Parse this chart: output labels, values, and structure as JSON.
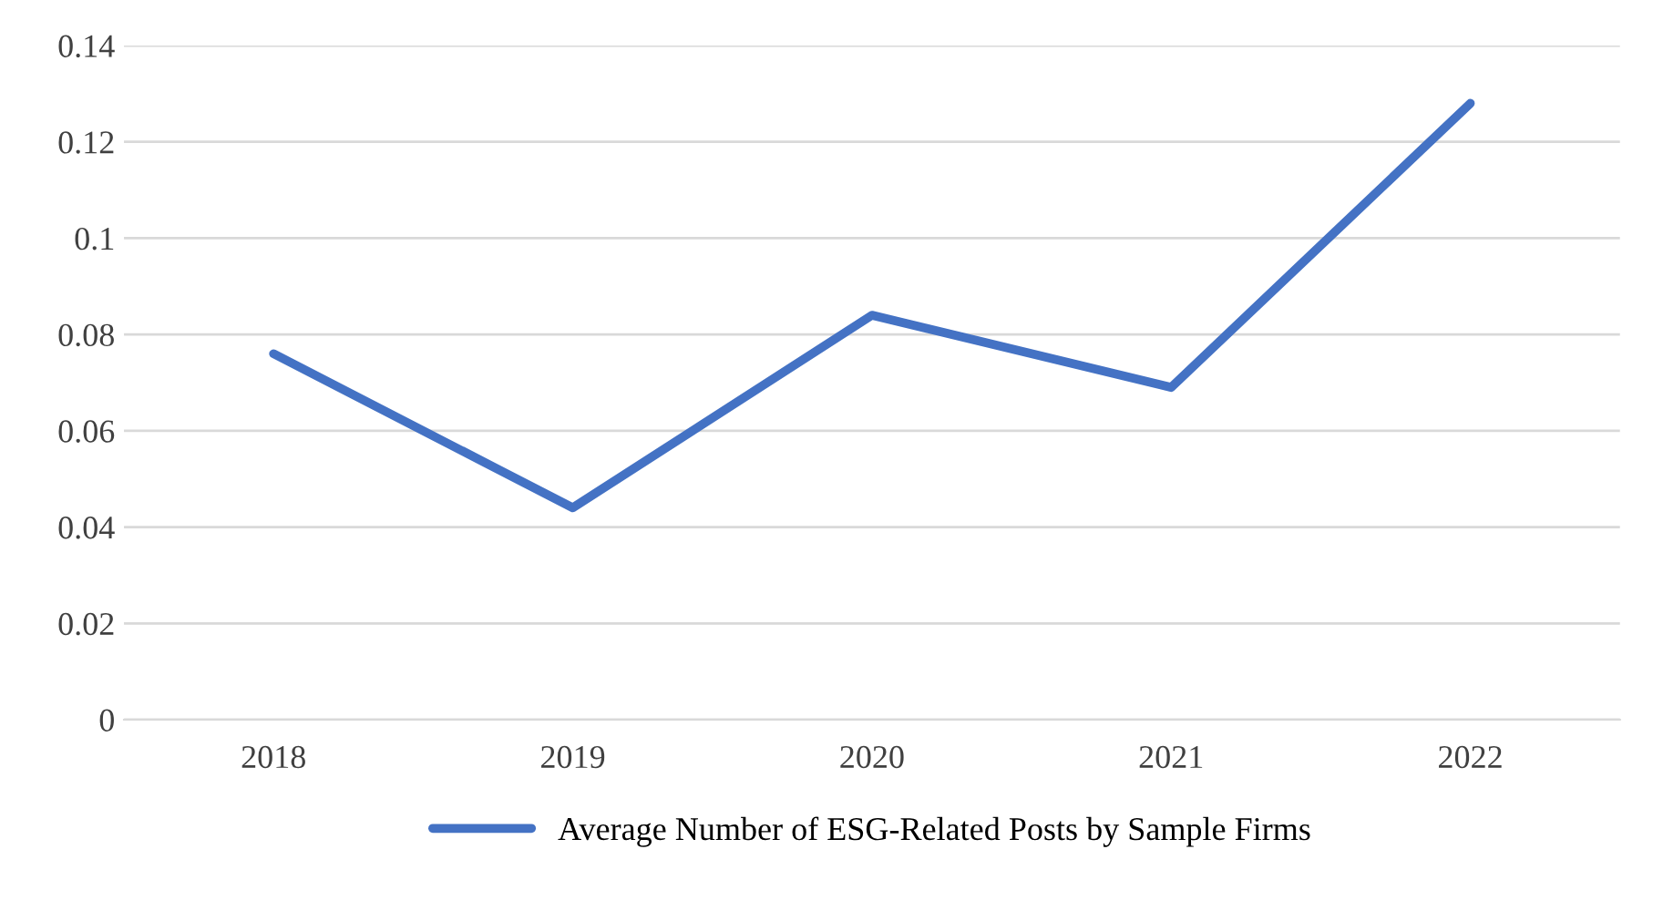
{
  "chart_data": {
    "type": "line",
    "categories": [
      "2018",
      "2019",
      "2020",
      "2021",
      "2022"
    ],
    "series": [
      {
        "name": "Average Number of ESG-Related Posts by Sample Firms",
        "color": "#4472c4",
        "values": [
          0.076,
          0.044,
          0.084,
          0.069,
          0.128
        ]
      }
    ],
    "ylim": [
      0,
      0.14
    ],
    "yticks": [
      0,
      0.02,
      0.04,
      0.06,
      0.08,
      0.1,
      0.12,
      0.14
    ],
    "grid": "y",
    "legend": "bottom",
    "marker": "none",
    "line_style": "solid"
  }
}
